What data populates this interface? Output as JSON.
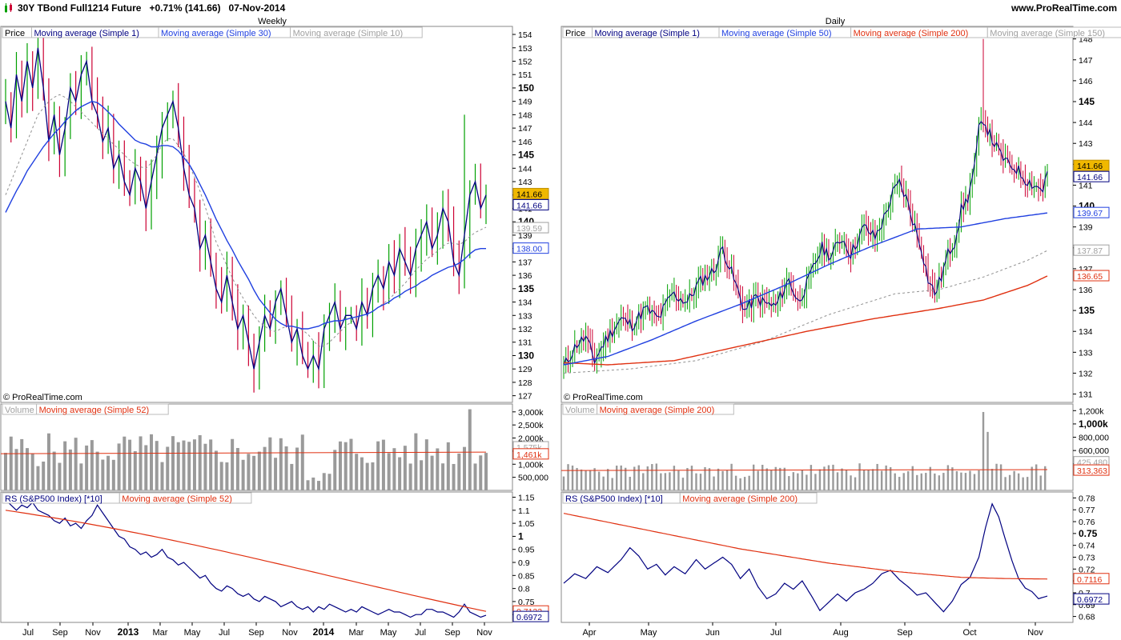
{
  "header": {
    "title": "30Y TBond Full1214 Future   +0.71% (141.66)   07-Nov-2014",
    "site": "www.ProRealTime.com"
  },
  "copyright": "© ProRealTime.com",
  "colors": {
    "up_candle": "#00a000",
    "down_candle": "#cc0033",
    "close_line": "#000080",
    "ma_blue": "#2040e0",
    "ma_grey": "#a0a0a0",
    "ma_red": "#e03010",
    "volume_bar": "#9a9a9a",
    "rs_line": "#000080",
    "price_badge": "#f0b800"
  },
  "chart_data": [
    {
      "type": "candlestick",
      "panel": "weekly-price",
      "title": "Weekly",
      "legend": [
        "Price",
        "Moving average (Simple 1)",
        "Moving average (Simple 30)",
        "Moving average (Simple 10)"
      ],
      "y_ticks": [
        "154",
        "153",
        "152",
        "151",
        "150",
        "149",
        "148",
        "147",
        "146",
        "145",
        "144",
        "143",
        "142",
        "141",
        "140",
        "139",
        "138",
        "137",
        "136",
        "135",
        "134",
        "133",
        "132",
        "131",
        "130",
        "129",
        "128",
        "127"
      ],
      "y_range": [
        126.5,
        154.6
      ],
      "y_labels": {
        "last": "141.66",
        "last2": "141.66",
        "ma10": "139.59",
        "ma30": "138.00"
      },
      "close": [
        149,
        147,
        151,
        149,
        152,
        150,
        153,
        150,
        146,
        148,
        145,
        147,
        150,
        149,
        151,
        152,
        149,
        148,
        146,
        147,
        144,
        145,
        143,
        142,
        144,
        143,
        141,
        143,
        145,
        147,
        148,
        149,
        147,
        144,
        142,
        141,
        138,
        139,
        137,
        135,
        134,
        136,
        134,
        132,
        133,
        131,
        129,
        131,
        133,
        132,
        134,
        135,
        133,
        131,
        132,
        130,
        129,
        130,
        129,
        132,
        133,
        134,
        132,
        133,
        133,
        132,
        134,
        133,
        135,
        136,
        135,
        137,
        136,
        138,
        137,
        136,
        138,
        139,
        140,
        138,
        139,
        141,
        140,
        137,
        136,
        139,
        142,
        143,
        141,
        142
      ],
      "ma30": [
        140.7,
        141.5,
        142.3,
        143.0,
        143.8,
        144.4,
        145.0,
        145.6,
        146.1,
        146.6,
        147.0,
        147.5,
        147.9,
        148.3,
        148.6,
        148.8,
        149.0,
        148.9,
        148.6,
        148.2,
        147.8,
        147.3,
        146.9,
        146.5,
        146.1,
        145.9,
        145.8,
        145.6,
        145.6,
        145.7,
        145.7,
        145.6,
        145.3,
        144.8,
        144.3,
        143.6,
        142.8,
        142.0,
        141.1,
        140.2,
        139.4,
        138.6,
        137.9,
        137.1,
        136.4,
        135.7,
        134.9,
        134.2,
        133.7,
        133.2,
        132.7,
        132.4,
        132.2,
        132.2,
        132.1,
        132.0,
        132.0,
        132.1,
        132.2,
        132.4,
        132.5,
        132.6,
        132.6,
        132.7,
        132.8,
        132.9,
        133.0,
        133.1,
        133.3,
        133.6,
        133.8,
        134.0,
        134.3,
        134.5,
        134.8,
        135.0,
        135.2,
        135.5,
        135.7,
        136.0,
        136.2,
        136.4,
        136.6,
        136.7,
        136.9,
        137.2,
        137.6,
        137.9,
        138.0,
        138.0
      ],
      "ma10": [
        142,
        143,
        144,
        145,
        146,
        147,
        148,
        148.5,
        149,
        149.3,
        149.5,
        149.3,
        149,
        148.6,
        148.2,
        147.8,
        147.4,
        147,
        146.6,
        146.2,
        145.8,
        145.4,
        145,
        144.6,
        144.3,
        144.1,
        144,
        144.4,
        145,
        145.8,
        146.2,
        146.2,
        145.7,
        145.1,
        144.3,
        143.3,
        142.3,
        141.1,
        139.8,
        138.5,
        137.6,
        136.7,
        135.8,
        135,
        134.3,
        133.6,
        133,
        132.5,
        132.2,
        131.9,
        131.8,
        132,
        132.2,
        132.2,
        132.1,
        131.9,
        131.6,
        131.1,
        130.7,
        130.7,
        131,
        131.4,
        131.8,
        132.2,
        132.5,
        132.8,
        133,
        133.1,
        133.3,
        133.6,
        133.9,
        134.2,
        134.6,
        135,
        135.4,
        135.9,
        136.4,
        136.8,
        137.2,
        137.5,
        137.8,
        138.2,
        138.4,
        138.4,
        138.3,
        138.5,
        138.9,
        139.2,
        139.4,
        139.59
      ],
      "x_ticks": [
        "Jul",
        "Sep",
        "Nov",
        "2013",
        "Mar",
        "May",
        "Jul",
        "Sep",
        "Nov",
        "2014",
        "Mar",
        "May",
        "Jul",
        "Sep",
        "Nov"
      ]
    },
    {
      "type": "bar",
      "panel": "weekly-volume",
      "legend": [
        "Volume",
        "Moving average (Simple 52)"
      ],
      "y_ticks": [
        "3,000k",
        "2,500k",
        "2,000k",
        "1,500k",
        "1,000k",
        "500,000"
      ],
      "y_range": [
        0,
        3300
      ],
      "y_labels": {
        "ma52": "1,461k",
        "volume": "1,575k"
      },
      "ma52": 1461
    },
    {
      "type": "line",
      "panel": "weekly-rs",
      "legend": [
        "RS (S&P500 Index) [*10]",
        "Moving average (Simple 52)"
      ],
      "y_ticks": [
        "1.15",
        "1.1",
        "1.05",
        "1",
        "0.95",
        "0.9",
        "0.85",
        "0.8",
        "0.75",
        "0.7"
      ],
      "y_range": [
        0.67,
        1.17
      ],
      "y_labels": {
        "ma52": "0.7123",
        "rs": "0.6972"
      },
      "rs": [
        1.14,
        1.12,
        1.1,
        1.12,
        1.11,
        1.13,
        1.1,
        1.09,
        1.08,
        1.06,
        1.05,
        1.07,
        1.04,
        1.05,
        1.03,
        1.06,
        1.08,
        1.12,
        1.09,
        1.06,
        1.03,
        1.0,
        0.99,
        0.96,
        0.95,
        0.93,
        0.94,
        0.92,
        0.93,
        0.95,
        0.92,
        0.91,
        0.89,
        0.9,
        0.88,
        0.86,
        0.84,
        0.85,
        0.82,
        0.8,
        0.79,
        0.81,
        0.8,
        0.78,
        0.77,
        0.78,
        0.76,
        0.75,
        0.77,
        0.76,
        0.75,
        0.73,
        0.74,
        0.75,
        0.73,
        0.72,
        0.73,
        0.71,
        0.73,
        0.72,
        0.74,
        0.73,
        0.72,
        0.71,
        0.72,
        0.71,
        0.73,
        0.72,
        0.71,
        0.7,
        0.71,
        0.72,
        0.71,
        0.71,
        0.7,
        0.69,
        0.7,
        0.7,
        0.72,
        0.72,
        0.71,
        0.71,
        0.7,
        0.69,
        0.71,
        0.74,
        0.71,
        0.7,
        0.69,
        0.6972
      ]
    },
    {
      "type": "candlestick",
      "panel": "daily-price",
      "title": "Daily",
      "legend": [
        "Price",
        "Moving average (Simple 1)",
        "Moving average (Simple 50)",
        "Moving average (Simple 200)",
        "Moving average (Simple 150)"
      ],
      "y_ticks": [
        "148",
        "147",
        "146",
        "145",
        "144",
        "143",
        "142",
        "141",
        "140",
        "139",
        "138",
        "137",
        "136",
        "135",
        "134",
        "133",
        "132",
        "131"
      ],
      "y_range": [
        130.6,
        148.6
      ],
      "y_labels": {
        "last": "141.66",
        "last2": "141.66",
        "ma50": "139.67",
        "ma150": "137.87",
        "ma200": "136.65"
      },
      "close_points": [
        [
          0,
          132.3
        ],
        [
          6,
          133.4
        ],
        [
          10,
          133.7
        ],
        [
          14,
          132.6
        ],
        [
          19,
          133.6
        ],
        [
          26,
          134.6
        ],
        [
          31,
          134.3
        ],
        [
          37,
          135.1
        ],
        [
          43,
          134.6
        ],
        [
          49,
          135.8
        ],
        [
          56,
          135.4
        ],
        [
          61,
          136.3
        ],
        [
          68,
          136.9
        ],
        [
          72,
          138.0
        ],
        [
          78,
          136.2
        ],
        [
          82,
          135.0
        ],
        [
          87,
          135.6
        ],
        [
          92,
          135.3
        ],
        [
          96,
          135.2
        ],
        [
          102,
          136.5
        ],
        [
          106,
          135.4
        ],
        [
          110,
          136.2
        ],
        [
          114,
          137.3
        ],
        [
          117,
          138.0
        ],
        [
          121,
          137.6
        ],
        [
          126,
          138.5
        ],
        [
          130,
          137.7
        ],
        [
          136,
          139.0
        ],
        [
          141,
          138.5
        ],
        [
          145,
          139.4
        ],
        [
          149,
          140.6
        ],
        [
          152,
          141.1
        ],
        [
          155,
          140.4
        ],
        [
          159,
          139.0
        ],
        [
          162,
          138.0
        ],
        [
          165,
          136.5
        ],
        [
          168,
          135.8
        ],
        [
          171,
          136.6
        ],
        [
          174,
          137.7
        ],
        [
          177,
          138.3
        ],
        [
          180,
          139.8
        ],
        [
          183,
          140.4
        ],
        [
          186,
          141.8
        ],
        [
          188,
          143.6
        ],
        [
          190,
          144.2
        ],
        [
          193,
          143.4
        ],
        [
          197,
          142.6
        ],
        [
          201,
          142.0
        ],
        [
          205,
          141.8
        ],
        [
          209,
          141.3
        ],
        [
          213,
          141.0
        ],
        [
          217,
          140.8
        ],
        [
          219,
          141.66
        ]
      ],
      "ma50": [
        [
          0,
          132.4
        ],
        [
          20,
          132.8
        ],
        [
          40,
          133.6
        ],
        [
          60,
          134.5
        ],
        [
          80,
          135.3
        ],
        [
          100,
          136.2
        ],
        [
          120,
          137.2
        ],
        [
          140,
          138.1
        ],
        [
          160,
          138.9
        ],
        [
          180,
          139.0
        ],
        [
          200,
          139.4
        ],
        [
          219,
          139.67
        ]
      ],
      "ma150": [
        [
          0,
          132.0
        ],
        [
          30,
          132.2
        ],
        [
          60,
          132.6
        ],
        [
          90,
          133.5
        ],
        [
          120,
          134.8
        ],
        [
          150,
          135.8
        ],
        [
          170,
          136.0
        ],
        [
          190,
          136.6
        ],
        [
          210,
          137.4
        ],
        [
          219,
          137.87
        ]
      ],
      "ma200": [
        [
          0,
          132.5
        ],
        [
          20,
          132.4
        ],
        [
          50,
          132.6
        ],
        [
          80,
          133.3
        ],
        [
          110,
          134.0
        ],
        [
          140,
          134.6
        ],
        [
          170,
          135.1
        ],
        [
          190,
          135.5
        ],
        [
          210,
          136.2
        ],
        [
          219,
          136.65
        ]
      ],
      "x_ticks": [
        "Apr",
        "May",
        "Jun",
        "Jul",
        "Aug",
        "Sep",
        "Oct",
        "Nov"
      ]
    },
    {
      "type": "bar",
      "panel": "daily-volume",
      "legend": [
        "Volume",
        "Moving average (Simple 200)"
      ],
      "y_ticks": [
        "1,200k",
        "1,000k",
        "800,000",
        "600,000",
        "400,000"
      ],
      "y_range": [
        0,
        1300
      ],
      "y_labels": {
        "volume": "425,480",
        "ma200": "313,363"
      },
      "ma200": 313
    },
    {
      "type": "line",
      "panel": "daily-rs",
      "legend": [
        "RS (S&P500 Index) [*10]",
        "Moving average (Simple 200)"
      ],
      "y_ticks": [
        "0.78",
        "0.77",
        "0.76",
        "0.75",
        "0.74",
        "0.73",
        "0.72",
        "0.71",
        "0.7",
        "0.69",
        "0.68"
      ],
      "y_range": [
        0.675,
        0.785
      ],
      "y_labels": {
        "ma200": "0.7116",
        "rs": "0.6972"
      },
      "rs_points": [
        [
          0,
          0.708
        ],
        [
          5,
          0.716
        ],
        [
          10,
          0.712
        ],
        [
          15,
          0.722
        ],
        [
          20,
          0.717
        ],
        [
          26,
          0.728
        ],
        [
          30,
          0.738
        ],
        [
          34,
          0.731
        ],
        [
          38,
          0.72
        ],
        [
          42,
          0.724
        ],
        [
          46,
          0.715
        ],
        [
          50,
          0.722
        ],
        [
          55,
          0.716
        ],
        [
          60,
          0.728
        ],
        [
          64,
          0.72
        ],
        [
          68,
          0.725
        ],
        [
          72,
          0.73
        ],
        [
          76,
          0.724
        ],
        [
          80,
          0.712
        ],
        [
          84,
          0.72
        ],
        [
          88,
          0.705
        ],
        [
          92,
          0.695
        ],
        [
          96,
          0.699
        ],
        [
          100,
          0.708
        ],
        [
          104,
          0.703
        ],
        [
          108,
          0.71
        ],
        [
          112,
          0.698
        ],
        [
          116,
          0.685
        ],
        [
          120,
          0.692
        ],
        [
          124,
          0.699
        ],
        [
          128,
          0.693
        ],
        [
          132,
          0.7
        ],
        [
          136,
          0.703
        ],
        [
          140,
          0.708
        ],
        [
          144,
          0.716
        ],
        [
          148,
          0.719
        ],
        [
          152,
          0.711
        ],
        [
          156,
          0.705
        ],
        [
          160,
          0.698
        ],
        [
          164,
          0.7
        ],
        [
          168,
          0.692
        ],
        [
          172,
          0.684
        ],
        [
          176,
          0.693
        ],
        [
          180,
          0.707
        ],
        [
          184,
          0.713
        ],
        [
          188,
          0.73
        ],
        [
          191,
          0.755
        ],
        [
          194,
          0.775
        ],
        [
          197,
          0.764
        ],
        [
          200,
          0.745
        ],
        [
          203,
          0.727
        ],
        [
          206,
          0.712
        ],
        [
          209,
          0.704
        ],
        [
          212,
          0.701
        ],
        [
          215,
          0.695
        ],
        [
          219,
          0.6972
        ]
      ],
      "ma200": [
        [
          0,
          0.767
        ],
        [
          40,
          0.752
        ],
        [
          80,
          0.737
        ],
        [
          120,
          0.725
        ],
        [
          150,
          0.718
        ],
        [
          180,
          0.713
        ],
        [
          200,
          0.712
        ],
        [
          219,
          0.7116
        ]
      ]
    }
  ]
}
